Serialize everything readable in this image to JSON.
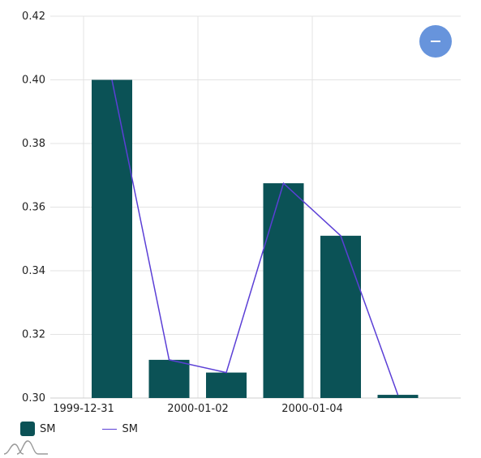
{
  "chart_data": {
    "type": "bar",
    "x": [
      "1999-12-31",
      "2000-01-01",
      "2000-01-02",
      "2000-01-03",
      "2000-01-04",
      "2000-01-05"
    ],
    "x_tick_labels": [
      "1999-12-31",
      "2000-01-02",
      "2000-01-04"
    ],
    "series": [
      {
        "name": "SM",
        "kind": "bar",
        "values": [
          0.4,
          0.312,
          0.308,
          0.3675,
          0.351,
          0.301
        ]
      },
      {
        "name": "SM",
        "kind": "line",
        "values": [
          0.4,
          0.312,
          0.308,
          0.3675,
          0.351,
          0.301
        ]
      }
    ],
    "ylim": [
      0.3,
      0.42
    ],
    "y_ticks": [
      "0.30",
      "0.32",
      "0.34",
      "0.36",
      "0.38",
      "0.40",
      "0.42"
    ],
    "grid": true,
    "legend_position": "bottom-left",
    "colors": {
      "bar": "#0b5256",
      "line": "#5b3fd6",
      "zoom_button": "#6794dc",
      "grid": "#e3e3e3"
    }
  },
  "legend": {
    "bar_label": "SM",
    "line_label": "SM"
  },
  "icons": {
    "zoom_out": "minus-icon",
    "logo": "amcharts-logo-icon"
  }
}
